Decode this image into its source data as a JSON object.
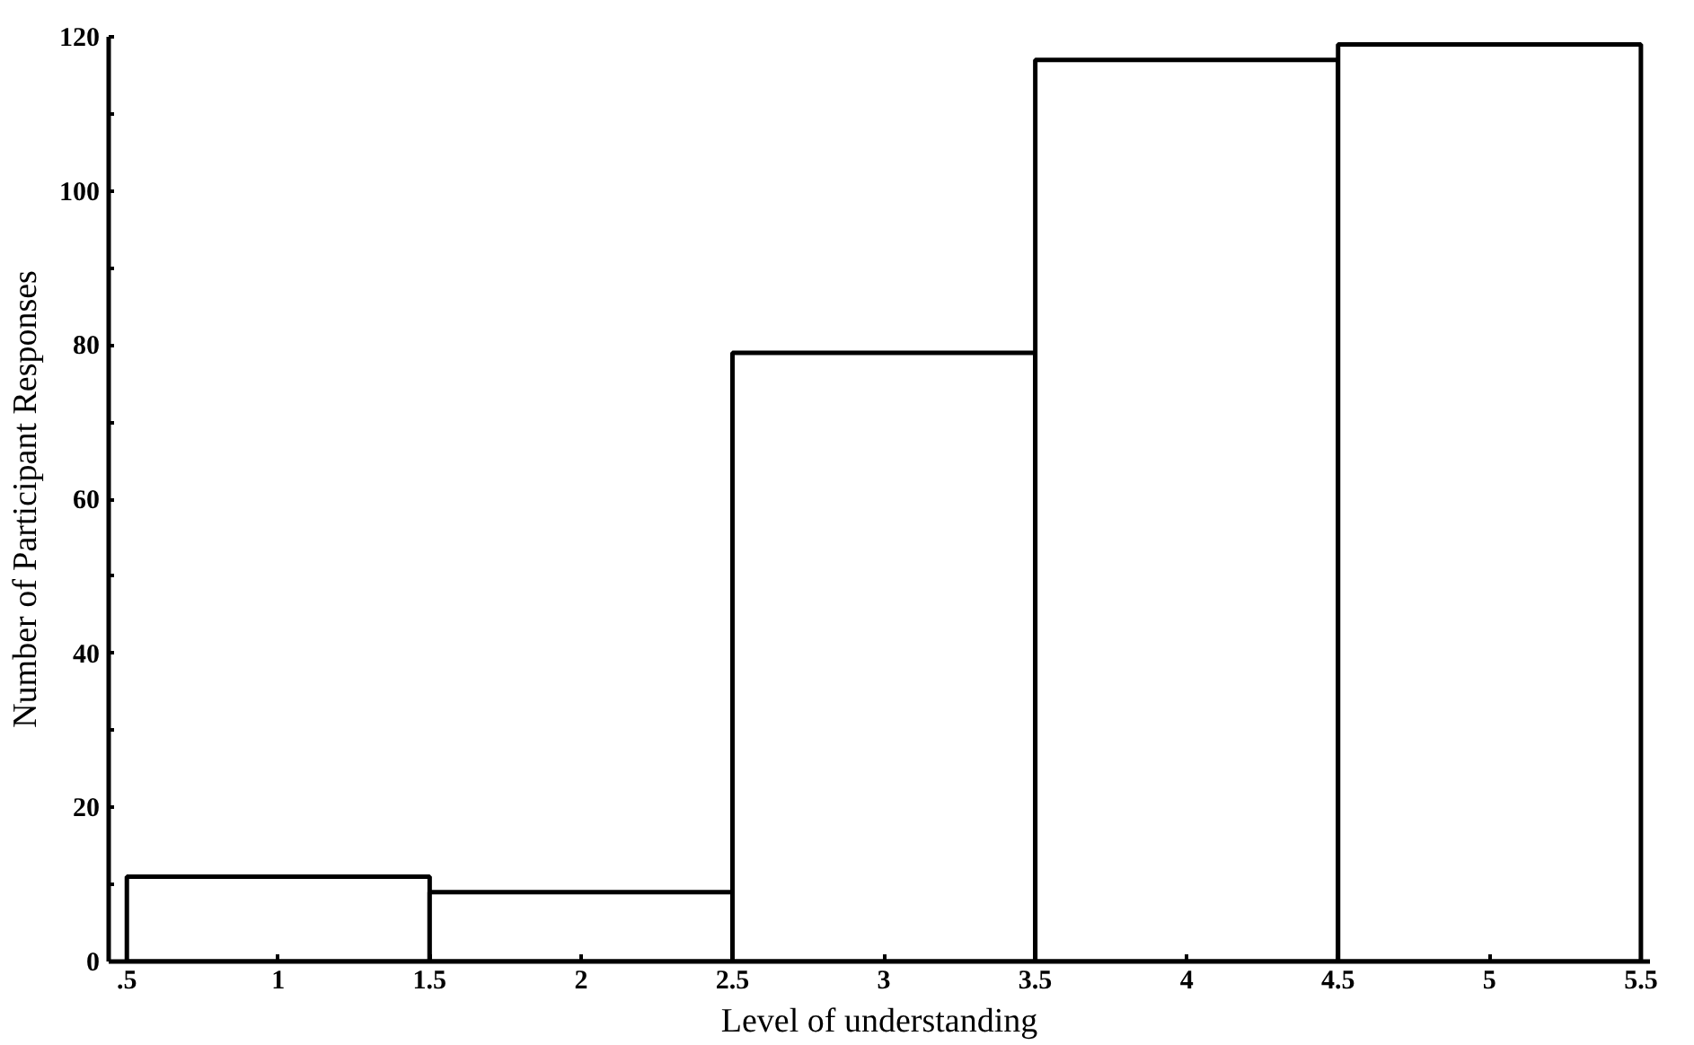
{
  "chart_data": {
    "type": "histogram",
    "xlabel": "Level of understanding",
    "ylabel": "Number of Participant Responses",
    "bins": [
      0.5,
      1.5,
      2.5,
      3.5,
      4.5,
      5.5
    ],
    "values": [
      11,
      9,
      79,
      117,
      119
    ],
    "color": "#ffffff",
    "xlim": [
      0.44,
      5.53
    ],
    "ylim": [
      0,
      120
    ],
    "xticks": [
      {
        "value": 0.5,
        "label": ".5"
      },
      1,
      1.5,
      2,
      2.5,
      3,
      3.5,
      4,
      4.5,
      5,
      5.5
    ],
    "yticks": [
      0,
      {
        "value": 10,
        "label": null
      },
      20,
      {
        "value": 30,
        "label": null
      },
      40,
      {
        "value": 50,
        "label": null
      },
      60,
      {
        "value": 70,
        "label": null
      },
      80,
      {
        "value": 90,
        "label": null
      },
      100,
      {
        "value": 110,
        "label": null
      },
      120
    ],
    "grid": false
  }
}
